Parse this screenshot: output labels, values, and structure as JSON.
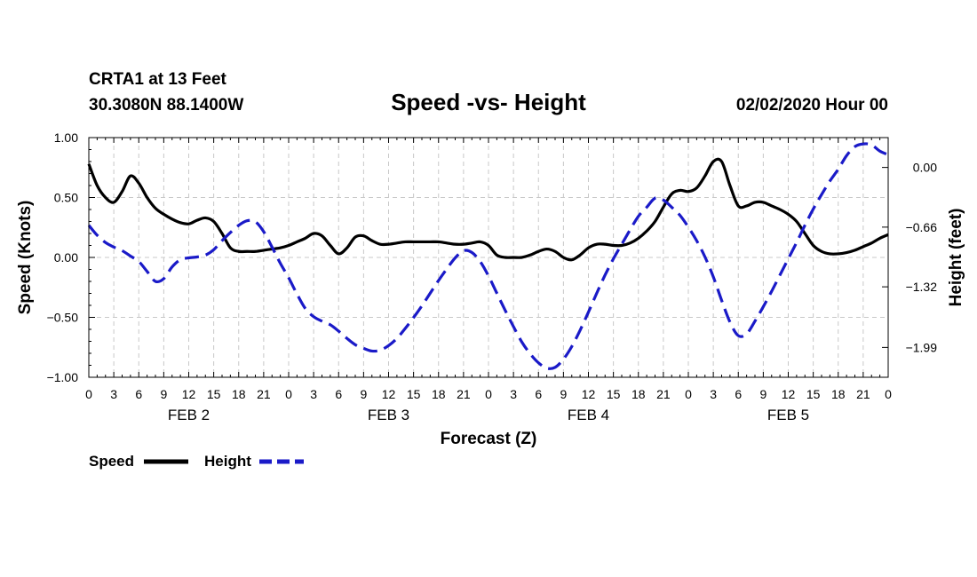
{
  "header": {
    "station": "CRTA1 at 13 Feet",
    "coords": "30.3080N 88.1400W",
    "title": "Speed -vs- Height",
    "datetime": "02/02/2020 Hour 00"
  },
  "chart_data": {
    "type": "line",
    "title": "Speed -vs- Height",
    "xlabel": "Forecast (Z)",
    "ylabel": "Speed (Knots)",
    "y2label": "Height (feet)",
    "ylim": [
      -1.0,
      1.0
    ],
    "y2lim": [
      -2.32,
      0.33
    ],
    "xlim": [
      0,
      96
    ],
    "grid": true,
    "x_tick_labels": [
      "0",
      "3",
      "6",
      "9",
      "12",
      "15",
      "18",
      "21",
      "0",
      "3",
      "6",
      "9",
      "12",
      "15",
      "18",
      "21",
      "0",
      "3",
      "6",
      "9",
      "12",
      "15",
      "18",
      "21",
      "0",
      "3",
      "6",
      "9",
      "12",
      "15",
      "18",
      "21",
      "0"
    ],
    "y_tick_labels": [
      "1.00",
      "0.50",
      "0.00",
      "−0.50",
      "−1.00"
    ],
    "y_tick_values": [
      1.0,
      0.5,
      0.0,
      -0.5,
      -1.0
    ],
    "y2_tick_labels": [
      "0.00",
      "−0.66",
      "−1.32",
      "−1.99"
    ],
    "y2_tick_values": [
      0.0,
      -0.66,
      -1.32,
      -1.99
    ],
    "day_labels": [
      {
        "label": "FEB 2",
        "hour": 12
      },
      {
        "label": "FEB 3",
        "hour": 36
      },
      {
        "label": "FEB 4",
        "hour": 60
      },
      {
        "label": "FEB 5",
        "hour": 84
      }
    ],
    "series": [
      {
        "name": "Speed",
        "axis": "left",
        "color": "#000000",
        "dashed": false,
        "x": [
          0,
          1,
          2,
          3,
          4,
          5,
          6,
          7,
          8,
          9,
          10,
          11,
          12,
          13,
          14,
          15,
          16,
          17,
          18,
          19,
          20,
          21,
          22,
          23,
          24,
          25,
          26,
          27,
          28,
          29,
          30,
          31,
          32,
          33,
          34,
          35,
          36,
          37,
          38,
          39,
          40,
          41,
          42,
          43,
          44,
          45,
          46,
          47,
          48,
          49,
          50,
          51,
          52,
          53,
          54,
          55,
          56,
          57,
          58,
          59,
          60,
          61,
          62,
          63,
          64,
          65,
          66,
          67,
          68,
          69,
          70,
          71,
          72,
          73,
          74,
          75,
          76,
          77,
          78,
          79,
          80,
          81,
          82,
          83,
          84,
          85,
          86,
          87,
          88,
          89,
          90,
          91,
          92,
          93,
          94,
          95,
          96
        ],
        "values": [
          0.78,
          0.6,
          0.5,
          0.46,
          0.55,
          0.68,
          0.62,
          0.5,
          0.41,
          0.36,
          0.32,
          0.29,
          0.28,
          0.31,
          0.33,
          0.3,
          0.2,
          0.08,
          0.05,
          0.05,
          0.05,
          0.06,
          0.07,
          0.08,
          0.1,
          0.13,
          0.16,
          0.2,
          0.18,
          0.1,
          0.03,
          0.08,
          0.17,
          0.18,
          0.14,
          0.11,
          0.11,
          0.12,
          0.13,
          0.13,
          0.13,
          0.13,
          0.13,
          0.12,
          0.11,
          0.11,
          0.12,
          0.13,
          0.1,
          0.02,
          0.0,
          0.0,
          0.0,
          0.02,
          0.05,
          0.07,
          0.05,
          0.0,
          -0.02,
          0.02,
          0.08,
          0.11,
          0.11,
          0.1,
          0.1,
          0.12,
          0.16,
          0.22,
          0.3,
          0.42,
          0.53,
          0.56,
          0.55,
          0.58,
          0.68,
          0.8,
          0.8,
          0.6,
          0.43,
          0.43,
          0.46,
          0.46,
          0.43,
          0.4,
          0.36,
          0.3,
          0.2,
          0.1,
          0.05,
          0.03,
          0.03,
          0.04,
          0.06,
          0.09,
          0.12,
          0.16,
          0.19
        ]
      },
      {
        "name": "Height",
        "axis": "right",
        "color": "#1a1ac8",
        "dashed": true,
        "x": [
          0,
          1,
          2,
          3,
          4,
          5,
          6,
          7,
          8,
          9,
          10,
          11,
          12,
          13,
          14,
          15,
          16,
          17,
          18,
          19,
          20,
          21,
          22,
          23,
          24,
          25,
          26,
          27,
          28,
          29,
          30,
          31,
          32,
          33,
          34,
          35,
          36,
          37,
          38,
          39,
          40,
          41,
          42,
          43,
          44,
          45,
          46,
          47,
          48,
          49,
          50,
          51,
          52,
          53,
          54,
          55,
          56,
          57,
          58,
          59,
          60,
          61,
          62,
          63,
          64,
          65,
          66,
          67,
          68,
          69,
          70,
          71,
          72,
          73,
          74,
          75,
          76,
          77,
          78,
          79,
          80,
          81,
          82,
          83,
          84,
          85,
          86,
          87,
          88,
          89,
          90,
          91,
          92,
          93,
          94,
          95,
          96
        ],
        "values": [
          -0.64,
          -0.75,
          -0.83,
          -0.88,
          -0.92,
          -0.98,
          -1.04,
          -1.15,
          -1.26,
          -1.23,
          -1.1,
          -1.02,
          -1.0,
          -0.99,
          -0.97,
          -0.91,
          -0.81,
          -0.72,
          -0.64,
          -0.59,
          -0.6,
          -0.71,
          -0.88,
          -1.06,
          -1.22,
          -1.4,
          -1.56,
          -1.65,
          -1.7,
          -1.74,
          -1.81,
          -1.89,
          -1.96,
          -2.0,
          -2.03,
          -2.02,
          -1.97,
          -1.89,
          -1.78,
          -1.66,
          -1.53,
          -1.39,
          -1.25,
          -1.12,
          -1.0,
          -0.92,
          -0.94,
          -1.04,
          -1.2,
          -1.39,
          -1.58,
          -1.76,
          -1.93,
          -2.06,
          -2.16,
          -2.22,
          -2.21,
          -2.12,
          -1.98,
          -1.8,
          -1.6,
          -1.39,
          -1.19,
          -1.01,
          -0.85,
          -0.69,
          -0.54,
          -0.44,
          -0.34,
          -0.36,
          -0.44,
          -0.53,
          -0.66,
          -0.81,
          -0.99,
          -1.21,
          -1.47,
          -1.71,
          -1.86,
          -1.84,
          -1.7,
          -1.54,
          -1.37,
          -1.19,
          -1.01,
          -0.83,
          -0.64,
          -0.46,
          -0.3,
          -0.15,
          -0.02,
          0.13,
          0.23,
          0.26,
          0.25,
          0.18,
          0.14
        ]
      }
    ]
  },
  "legend": {
    "speed_label": "Speed",
    "height_label": "Height"
  }
}
